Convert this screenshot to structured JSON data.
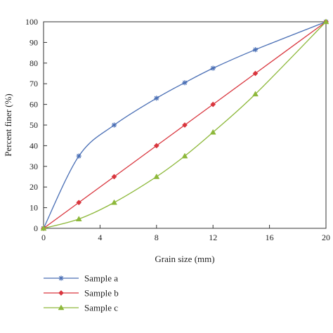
{
  "chart_data": {
    "type": "line",
    "xlabel": "Grain size (mm)",
    "ylabel": "Percent finer (%)",
    "xlim": [
      0,
      20
    ],
    "ylim": [
      0,
      100
    ],
    "xticks": [
      0,
      4,
      8,
      12,
      16,
      20
    ],
    "yticks": [
      0,
      10,
      20,
      30,
      40,
      50,
      60,
      70,
      80,
      90,
      100
    ],
    "grid": false,
    "legend_position": "bottom-left, below plot",
    "series": [
      {
        "name": "Sample a",
        "color": "#4a6fb5",
        "marker": "asterisk",
        "x": [
          0,
          2.5,
          5,
          8,
          10,
          12,
          15,
          20
        ],
        "y": [
          0,
          35,
          50,
          63,
          70.5,
          77.5,
          86.5,
          100
        ]
      },
      {
        "name": "Sample b",
        "color": "#d9363e",
        "marker": "diamond",
        "x": [
          0,
          2.5,
          5,
          8,
          10,
          12,
          15,
          20
        ],
        "y": [
          0,
          12.5,
          25,
          40,
          50,
          60,
          75,
          100
        ]
      },
      {
        "name": "Sample c",
        "color": "#8db83a",
        "marker": "triangle",
        "x": [
          0,
          2.5,
          5,
          8,
          10,
          12,
          15,
          20
        ],
        "y": [
          0,
          4.5,
          12.5,
          25,
          35,
          46.5,
          65,
          100
        ]
      }
    ]
  }
}
